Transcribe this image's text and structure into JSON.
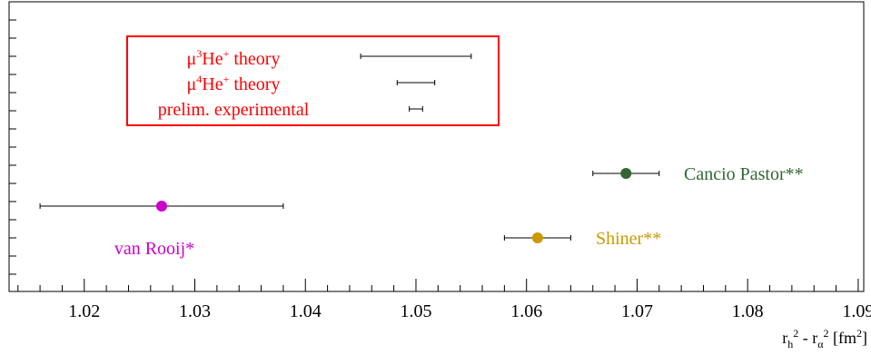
{
  "chart_data": {
    "type": "scatter",
    "title": "",
    "xlim": [
      1.0132,
      1.0905
    ],
    "x_ticks": [
      "1.02",
      "1.03",
      "1.04",
      "1.05",
      "1.06",
      "1.07",
      "1.08",
      "1.09"
    ],
    "x_tick_values": [
      1.02,
      1.03,
      1.04,
      1.05,
      1.06,
      1.07,
      1.08,
      1.09
    ],
    "xlabel": {
      "r1": "r",
      "sub1": "h",
      "sup1": "2",
      "mid": " - ",
      "r2": "r",
      "sub2": "α",
      "sup2": "2",
      "unit_open": " [fm",
      "unit_sup": "2",
      "unit_close": "]"
    },
    "ylabel": "",
    "grid": false,
    "legend": {
      "placement": "top-left",
      "border_color": "#ff0000",
      "text_color": "#ff0000",
      "entries": [
        {
          "prefix": "μ",
          "sup_a": "3",
          "mid": "He",
          "sup_b": "+",
          "suffix": " theory",
          "x": 1.05,
          "xerr": 0.005
        },
        {
          "prefix": "μ",
          "sup_a": "4",
          "mid": "He",
          "sup_b": "+",
          "suffix": " theory",
          "x": 1.05,
          "xerr": 0.0017
        },
        {
          "prefix": "prelim. experimental",
          "sup_a": "",
          "mid": "",
          "sup_b": "",
          "suffix": "",
          "x": 1.05,
          "xerr": 0.0006
        }
      ]
    },
    "points": [
      {
        "name": "Cancio Pastor**",
        "x": 1.069,
        "xerr": 0.003,
        "color": "#336633",
        "label_side": "right"
      },
      {
        "name": "van Rooij*",
        "x": 1.027,
        "xerr": 0.011,
        "color": "#cc00cc",
        "label_side": "below"
      },
      {
        "name": "Shiner**",
        "x": 1.061,
        "xerr": 0.003,
        "color": "#cc9900",
        "label_side": "right"
      }
    ]
  }
}
